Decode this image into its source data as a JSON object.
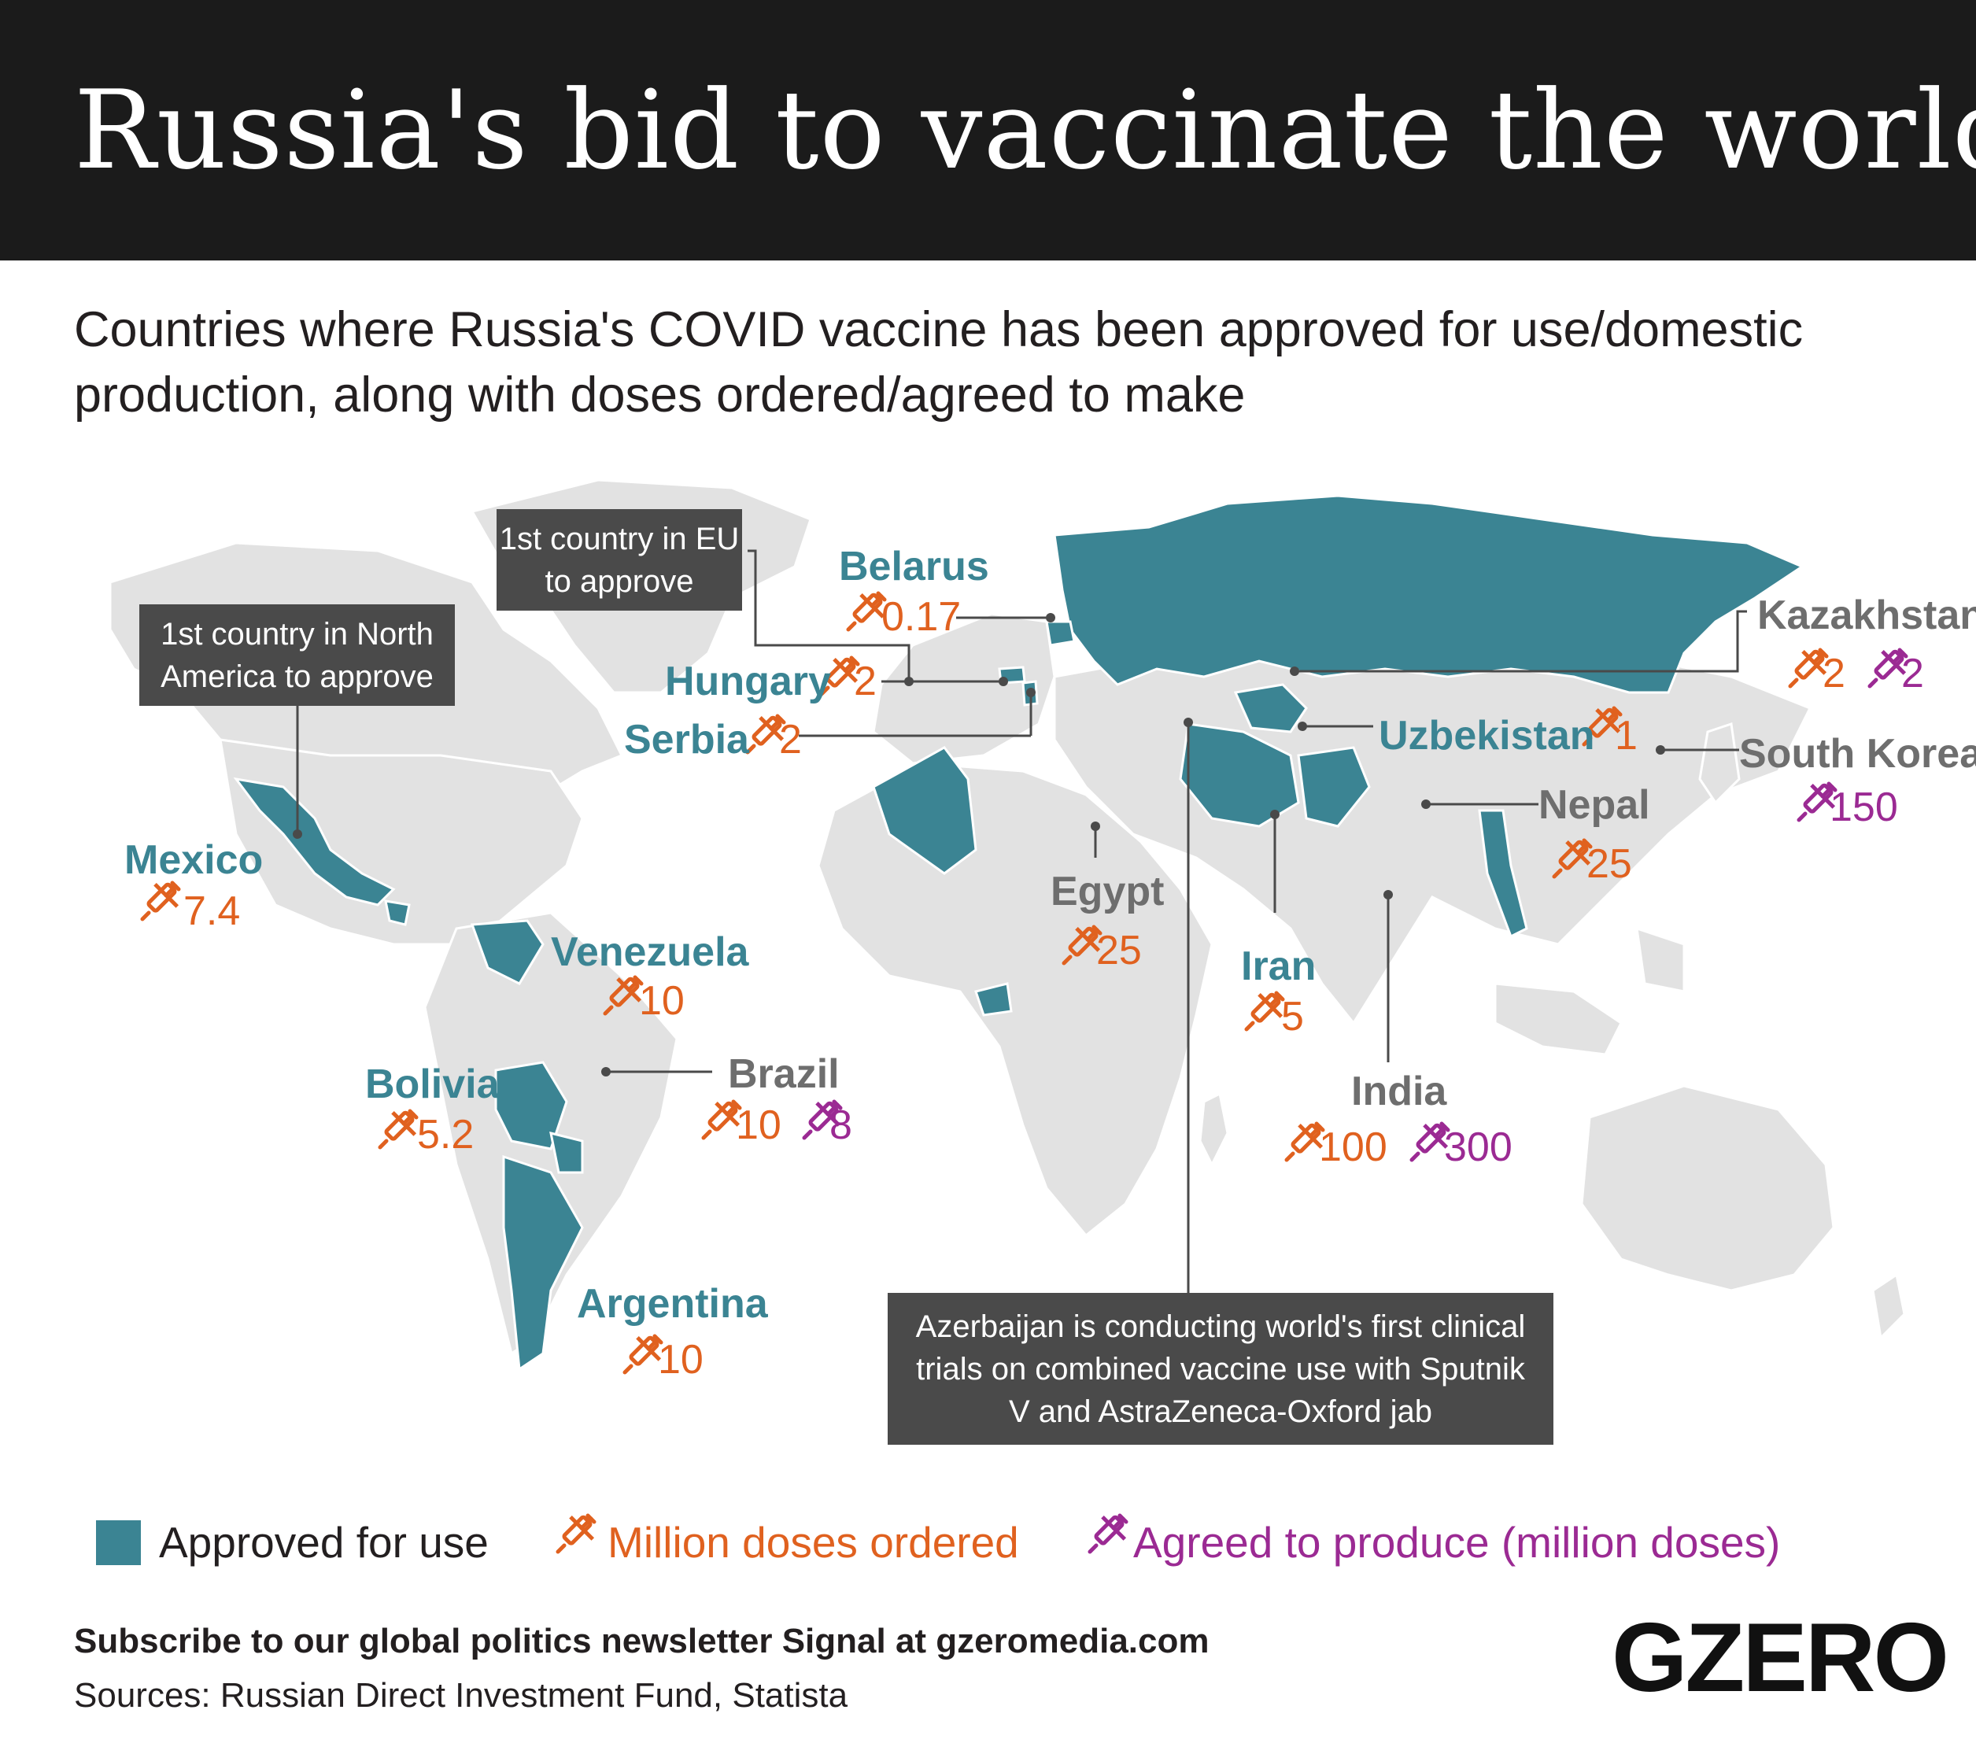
{
  "title": "Russia's bid to vaccinate the world",
  "subtitle": "Countries where Russia's COVID vaccine has been approved for use/domestic production, along with doses ordered/agreed to make",
  "colors": {
    "approved": "#3b8493",
    "land": "#e2e2e2",
    "ordered": "#e0611f",
    "produce": "#9b2a93",
    "approved_label": "#3b8493",
    "other_label": "#6e6e6e"
  },
  "countries": [
    {
      "name": "Belarus",
      "approved": true,
      "ordered": "0.17"
    },
    {
      "name": "Hungary",
      "approved": true,
      "ordered": "2"
    },
    {
      "name": "Serbia",
      "approved": true,
      "ordered": "2"
    },
    {
      "name": "Kazakhstan",
      "approved": false,
      "ordered": "2",
      "produce": "2"
    },
    {
      "name": "Uzbekistan",
      "approved": true,
      "ordered": "1"
    },
    {
      "name": "South Korea",
      "approved": false,
      "produce": "150"
    },
    {
      "name": "Nepal",
      "approved": false,
      "ordered": "25"
    },
    {
      "name": "Mexico",
      "approved": true,
      "ordered": "7.4"
    },
    {
      "name": "Egypt",
      "approved": false,
      "ordered": "25"
    },
    {
      "name": "Venezuela",
      "approved": true,
      "ordered": "10"
    },
    {
      "name": "Iran",
      "approved": true,
      "ordered": "5"
    },
    {
      "name": "Bolivia",
      "approved": true,
      "ordered": "5.2"
    },
    {
      "name": "Brazil",
      "approved": false,
      "ordered": "10",
      "produce": "8"
    },
    {
      "name": "India",
      "approved": false,
      "ordered": "100",
      "produce": "300"
    },
    {
      "name": "Argentina",
      "approved": true,
      "ordered": "10"
    }
  ],
  "notes": {
    "eu": "1st country in EU to approve",
    "north_america": "1st country in North America to approve",
    "azerbaijan": "Azerbaijan is conducting world's first clinical trials on combined vaccine use with Sputnik V and AstraZeneca-Oxford jab"
  },
  "legend": {
    "approved": "Approved for use",
    "ordered": "Million doses ordered",
    "produce": "Agreed to produce (million doses)"
  },
  "footer": {
    "cta": "Subscribe to our global politics newsletter Signal at gzeromedia.com",
    "sources": "Sources: Russian Direct Investment Fund, Statista",
    "logo": "GZERO"
  },
  "icons": {
    "ordered": "syringe-icon",
    "produce": "syringe-icon"
  }
}
